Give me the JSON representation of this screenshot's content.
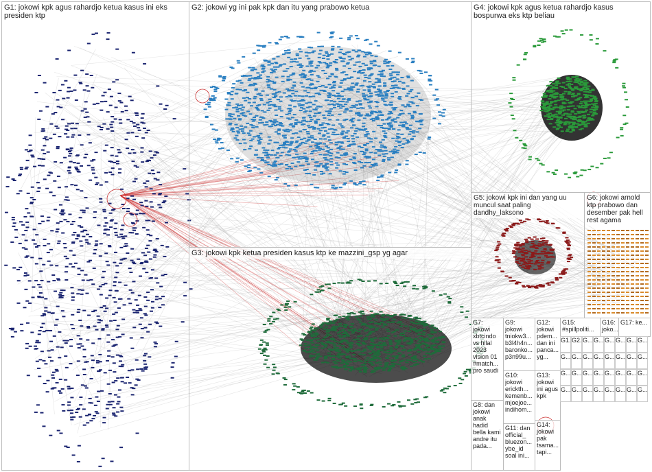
{
  "groups": [
    {
      "label": "G1: jokowi kpk agus rahardjo ketua kasus ini eks presiden ktp"
    },
    {
      "label": "G2: jokowi yg ini pak kpk dan itu yang prabowo ketua"
    },
    {
      "label": "G3: jokowi kpk ketua presiden kasus ktp ke mazzini_gsp yg agar"
    },
    {
      "label": "G4: jokowi kpk agus ketua rahardjo kasus bospurwa eks ktp beliau"
    },
    {
      "label": "G5: jokowi kpk ini dan yang uu muncul saat paling dandhy_laksono"
    },
    {
      "label": "G6: jokowi arnold ktp prabowo dan desember pak hell rest agama"
    },
    {
      "label": "G7: jokowi xbtcindo vs hilal 2023 vision 01 #match... pro saudi"
    },
    {
      "label": "G8: dan jokowi anak hadid bella kami andre itu pada..."
    },
    {
      "label": "G9: jokowi tniokw3... b3l4h4n... baronko... p3n99u..."
    },
    {
      "label": "G10: jokowi erickth... kemenb... mjoejoe... indihom..."
    },
    {
      "label": "G11: dan official_ bluezon... ybe_id soal ini..."
    },
    {
      "label": "G12: jokowi pdem... dan ini panca... yg..."
    },
    {
      "label": "G13: jokowi ini agus kpk"
    },
    {
      "label": "G14: jokowi pak tsama... tapi..."
    },
    {
      "label": "G15: #spillpoliti..."
    },
    {
      "label": "G16: joko..."
    },
    {
      "label": "G17: ke..."
    }
  ],
  "small_groups": [
    "G1...",
    "G2...",
    "G...",
    "G...",
    "G...",
    "G...",
    "G...",
    "G...",
    "G...",
    "G...",
    "G...",
    "G...",
    "G...",
    "G...",
    "G...",
    "G...",
    "G...",
    "G...",
    "G...",
    "G...",
    "G...",
    "G...",
    "G...",
    "G...",
    "G...",
    "G...",
    "G...",
    "G...",
    "G...",
    "G...",
    "G...",
    "G..."
  ]
}
